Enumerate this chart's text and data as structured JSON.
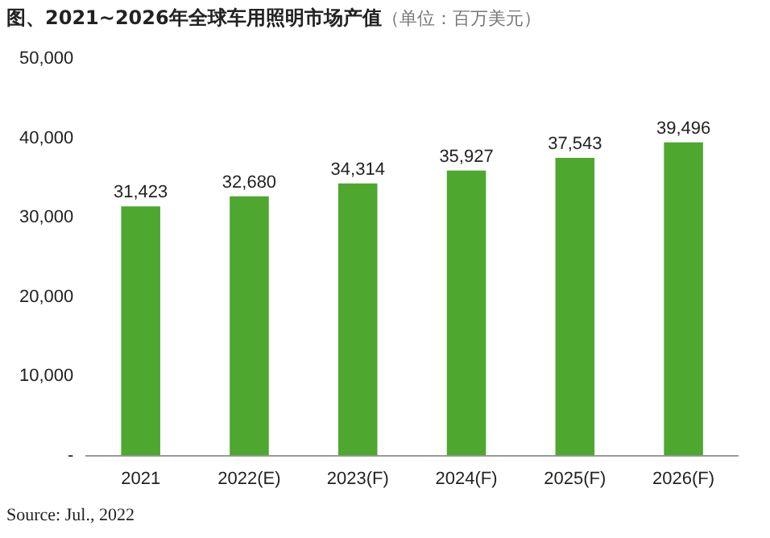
{
  "chart_data": {
    "type": "bar",
    "title": "图、2021~2026年全球车用照明市场产值",
    "subtitle": "（单位：百万美元）",
    "categories": [
      "2021",
      "2022(E)",
      "2023(F)",
      "2024(F)",
      "2025(F)",
      "2026(F)"
    ],
    "values": [
      31423,
      32680,
      34314,
      35927,
      37543,
      39496
    ],
    "value_labels": [
      "31,423",
      "32,680",
      "34,314",
      "35,927",
      "37,543",
      "39,496"
    ],
    "color": "#4ea72e",
    "ylim": [
      0,
      50000
    ],
    "yticks": [
      {
        "value": 0,
        "label": "-"
      },
      {
        "value": 10000,
        "label": "10,000"
      },
      {
        "value": 20000,
        "label": "20,000"
      },
      {
        "value": 30000,
        "label": "30,000"
      },
      {
        "value": 40000,
        "label": "40,000"
      },
      {
        "value": 50000,
        "label": "50,000"
      }
    ],
    "grid": false,
    "legend": false,
    "annotations": [
      "Source: Jul., 2022"
    ]
  }
}
